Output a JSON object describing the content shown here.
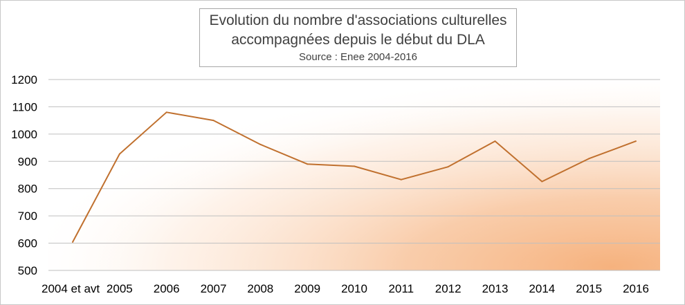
{
  "chart_data": {
    "type": "line",
    "title": "Evolution du nombre d'associations culturelles accompagnées depuis le début du DLA",
    "title_lines": [
      "Evolution du nombre d'associations culturelles",
      "accompagnées depuis le début du DLA"
    ],
    "subtitle": "Source : Enee 2004-2016",
    "categories": [
      "2004 et avt",
      "2005",
      "2006",
      "2007",
      "2008",
      "2009",
      "2010",
      "2011",
      "2012",
      "2013",
      "2014",
      "2015",
      "2016"
    ],
    "series": [
      {
        "values": [
          604,
          927,
          1080,
          1050,
          962,
          890,
          882,
          833,
          880,
          974,
          826,
          910,
          974
        ],
        "color": "#c0702e"
      }
    ],
    "ylim": [
      500,
      1200
    ],
    "yticks": [
      500,
      600,
      700,
      800,
      900,
      1000,
      1100,
      1200
    ],
    "grid": true,
    "legend": "none",
    "background_gradient": [
      "#ffffff",
      "#f6b27e"
    ]
  }
}
